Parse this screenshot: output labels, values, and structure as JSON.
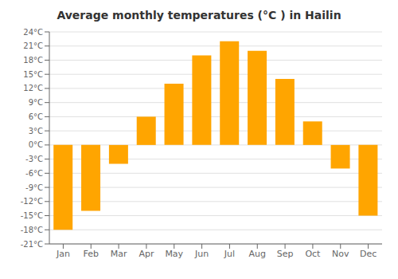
{
  "chart_data": {
    "type": "bar",
    "title": "Average monthly temperatures (°C ) in Hailin",
    "categories": [
      "Jan",
      "Feb",
      "Mar",
      "Apr",
      "May",
      "Jun",
      "Jul",
      "Aug",
      "Sep",
      "Oct",
      "Nov",
      "Dec"
    ],
    "values": [
      -18,
      -14,
      -4,
      6,
      13,
      19,
      22,
      20,
      14,
      5,
      -5,
      -15
    ],
    "color": "#FFA500",
    "ylim": [
      -21,
      24
    ],
    "yticks": [
      {
        "value": -21,
        "label": "-21°C"
      },
      {
        "value": -18,
        "label": "-18°C"
      },
      {
        "value": -15,
        "label": "-15°C"
      },
      {
        "value": -12,
        "label": "-12°C"
      },
      {
        "value": -9,
        "label": "-9°C"
      },
      {
        "value": -6,
        "label": "-6°C"
      },
      {
        "value": -3,
        "label": "-3°C"
      },
      {
        "value": 0,
        "label": "0°C"
      },
      {
        "value": 3,
        "label": "3°C"
      },
      {
        "value": 6,
        "label": "6°C"
      },
      {
        "value": 9,
        "label": "9°C"
      },
      {
        "value": 12,
        "label": "12°C"
      },
      {
        "value": 15,
        "label": "15°C"
      },
      {
        "value": 18,
        "label": "18°C"
      },
      {
        "value": 21,
        "label": "21°C"
      },
      {
        "value": 24,
        "label": "24°C"
      }
    ],
    "grid": true
  }
}
